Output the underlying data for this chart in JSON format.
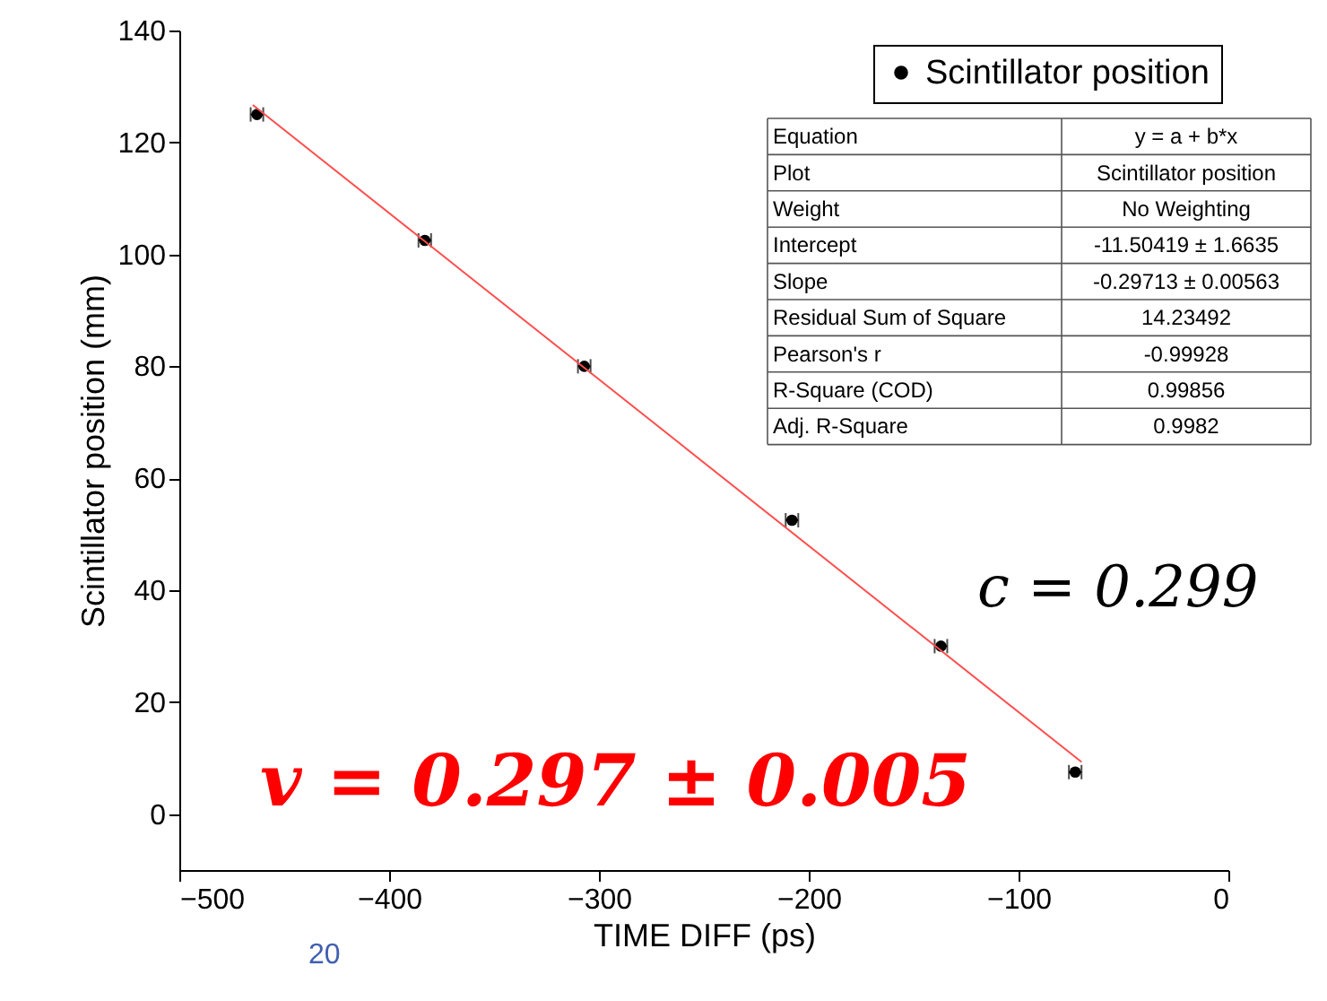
{
  "chart_data": {
    "type": "scatter",
    "xlabel": "TIME DIFF (ps)",
    "ylabel": "Scintillator position (mm)",
    "xlim": [
      -500,
      0
    ],
    "xticks": [
      -500,
      -400,
      -300,
      -200,
      -100,
      0
    ],
    "ylim": [
      -10,
      140
    ],
    "yticks": [
      0,
      20,
      40,
      60,
      80,
      100,
      120,
      140
    ],
    "grid": false,
    "legend": "top right",
    "series": [
      {
        "name": "Scintillator position",
        "marker": "circle",
        "color": "#000000",
        "x": [
          -463,
          -383,
          -307,
          -208,
          -137,
          -73
        ],
        "values": [
          125,
          102.5,
          80,
          52.5,
          30,
          7.5
        ],
        "xerrors": [
          3,
          3,
          3,
          3,
          3,
          3
        ]
      },
      {
        "type": "line",
        "marker": "none",
        "color": "#ff4d4d",
        "x": [
          -465,
          -70
        ],
        "values": [
          126.7,
          9.3
        ]
      }
    ],
    "annotations": [
      "Equation",
      "y = a + b*x",
      "Plot",
      "Scintillator position",
      "Weight",
      "No Weighting",
      "Intercept",
      "-11.50419 ± 1.6635",
      "Slope",
      "-0.29713 ± 0.00563",
      "Residual Sum of Square",
      "14.23492",
      "Pearson's r",
      "-0.99928",
      "R-Square (COD)",
      "0.99856",
      "Adj. R-Square",
      "0.9982",
      "v = 0.297 ± 0.005",
      "c = 0.299",
      "20"
    ]
  }
}
